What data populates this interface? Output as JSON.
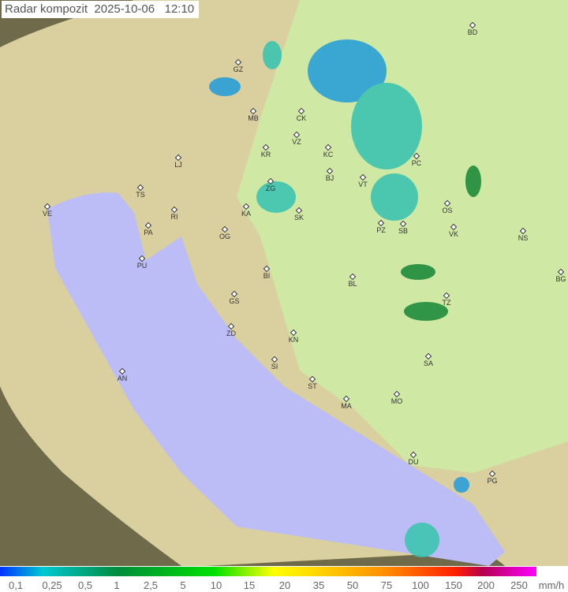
{
  "title": "Radar kompozit  2025-10-06   12:10",
  "legend": {
    "unit": "mm/h",
    "ticks": [
      "0,1",
      "0,25",
      "0,5",
      "1",
      "2,5",
      "5",
      "10",
      "15",
      "20",
      "35",
      "50",
      "75",
      "100",
      "150",
      "200",
      "250"
    ]
  },
  "colors": {
    "sea": "#bcbcf6",
    "land": "#cfe3a0",
    "outside": "#6f6a4a",
    "precip_light": "#2a9fd8",
    "precip_mid": "#3cc4b0",
    "precip_heavy": "#1e8c3c"
  },
  "cities": [
    "GZ",
    "MB",
    "CK",
    "VZ",
    "KR",
    "KC",
    "LJ",
    "ZG",
    "BJ",
    "VT",
    "PC",
    "OS",
    "KA",
    "SK",
    "VK",
    "NS",
    "TS",
    "VE",
    "RI",
    "PA",
    "OG",
    "PU",
    "BI",
    "BL",
    "BG",
    "GS",
    "ZD",
    "KN",
    "TZ",
    "SA",
    "SI",
    "AN",
    "ST",
    "MA",
    "MO",
    "DU",
    "PG",
    "BD",
    "SB",
    "PZ"
  ]
}
